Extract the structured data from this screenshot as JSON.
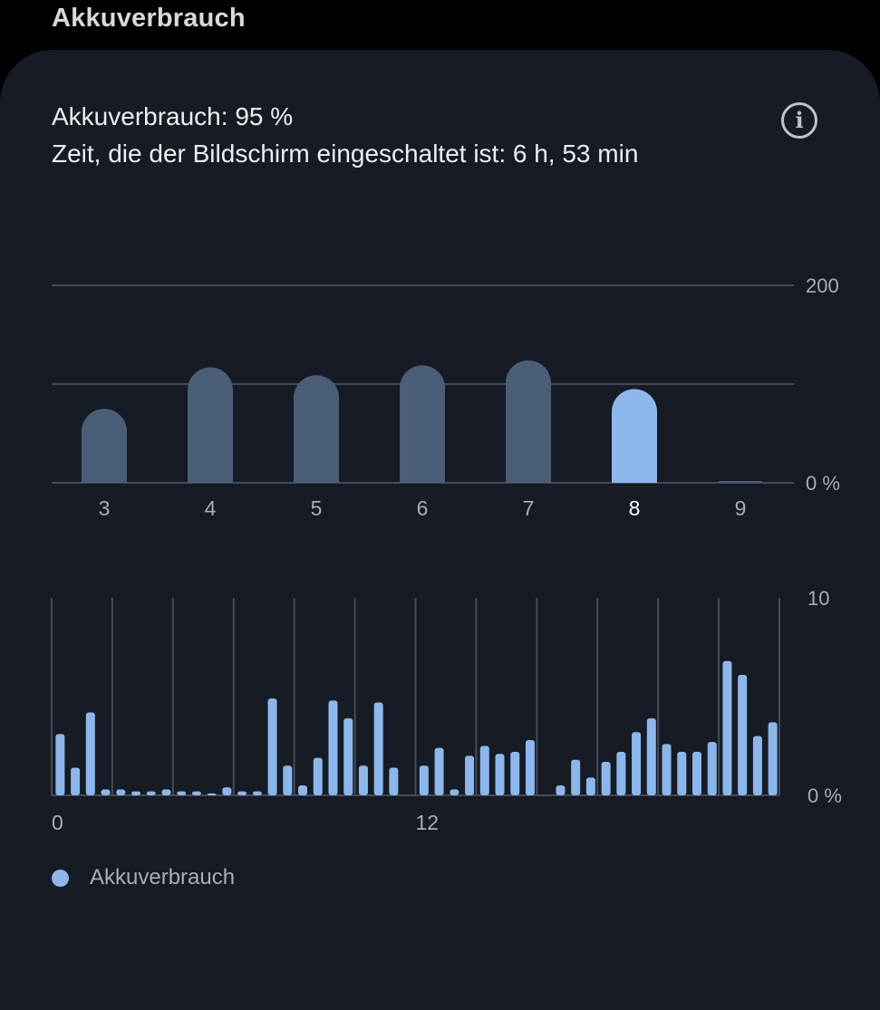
{
  "section_title": "Akkuverbrauch",
  "summary": {
    "usage": "Akkuverbrauch: 95 %",
    "screen_time": "Zeit, die der Bildschirm eingeschaltet ist: 6 h, 53 min"
  },
  "info_icon": "info-icon",
  "legend": {
    "label": "Akkuverbrauch",
    "color": "#8bb7ec"
  },
  "colors": {
    "background": "#171c24",
    "bar_default": "#4a5e78",
    "bar_selected": "#8bb7ec",
    "grid": "#454b54",
    "axis_text": "#a9adb4",
    "axis_text_selected": "#ffffff"
  },
  "chart_data": [
    {
      "type": "bar",
      "categories": [
        "3",
        "4",
        "5",
        "6",
        "7",
        "8",
        "9"
      ],
      "values": [
        75,
        117,
        109,
        119,
        124,
        95,
        1
      ],
      "selected": "8",
      "y_tick_labels": [
        "200",
        "0 %"
      ],
      "ylim": [
        0,
        200
      ],
      "grid": true
    },
    {
      "type": "bar",
      "x_tick_labels": [
        "0",
        "12"
      ],
      "values": [
        3.1,
        1.4,
        4.2,
        0.3,
        0.3,
        0.2,
        0.2,
        0.3,
        0.2,
        0.2,
        0.1,
        0.4,
        0.2,
        0.2,
        4.9,
        1.5,
        0.5,
        1.9,
        4.8,
        3.9,
        1.5,
        4.7,
        1.4,
        0,
        1.5,
        2.4,
        0.3,
        2.0,
        2.5,
        2.1,
        2.2,
        2.8,
        0,
        0.5,
        1.8,
        0.9,
        1.7,
        2.2,
        3.2,
        3.9,
        2.6,
        2.2,
        2.2,
        2.7,
        6.8,
        6.1,
        3.0,
        3.7
      ],
      "y_tick_labels": [
        "10",
        "0 %"
      ],
      "ylim": [
        0,
        10
      ],
      "grid": true
    }
  ]
}
